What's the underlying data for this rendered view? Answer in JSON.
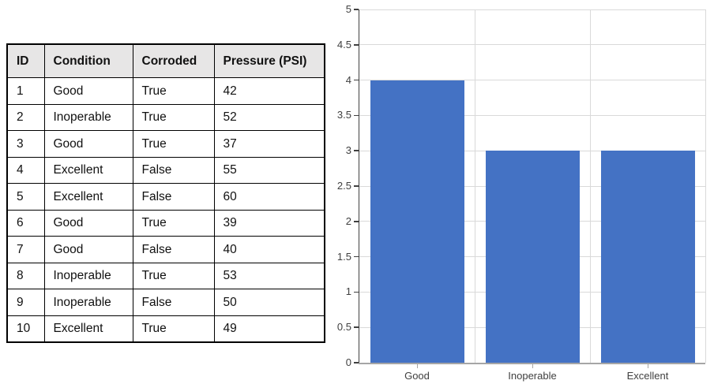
{
  "colors": {
    "background": "#FFFFFF",
    "bar": "#4472C4",
    "gridline": "#D9D9D9",
    "y_axis": "#404040",
    "x_axis": "#A6A6A6",
    "axis_label": "#404040",
    "table_border": "#000000",
    "header_bg": "#E7E6E6",
    "table_text": "#111111"
  },
  "table": {
    "headers": [
      "ID",
      "Condition",
      "Corroded",
      "Pressure (PSI)"
    ],
    "rows": [
      [
        "1",
        "Good",
        "True",
        "42"
      ],
      [
        "2",
        "Inoperable",
        "True",
        "52"
      ],
      [
        "3",
        "Good",
        "True",
        "37"
      ],
      [
        "4",
        "Excellent",
        "False",
        "55"
      ],
      [
        "5",
        "Excellent",
        "False",
        "60"
      ],
      [
        "6",
        "Good",
        "True",
        "39"
      ],
      [
        "7",
        "Good",
        "False",
        "40"
      ],
      [
        "8",
        "Inoperable",
        "True",
        "53"
      ],
      [
        "9",
        "Inoperable",
        "False",
        "50"
      ],
      [
        "10",
        "Excellent",
        "True",
        "49"
      ]
    ]
  },
  "chart_data": {
    "type": "bar",
    "title": "",
    "xlabel": "",
    "ylabel": "",
    "categories": [
      "Good",
      "Inoperable",
      "Excellent"
    ],
    "values": [
      4,
      3,
      3
    ],
    "ylim": [
      0,
      5
    ],
    "ytick_step": 0.5,
    "ytick_labels": [
      "0",
      "0.5",
      "1",
      "1.5",
      "2",
      "2.5",
      "3",
      "3.5",
      "4",
      "4.5",
      "5"
    ],
    "grid": true,
    "legend": "none",
    "bar_color": "#4472C4"
  }
}
